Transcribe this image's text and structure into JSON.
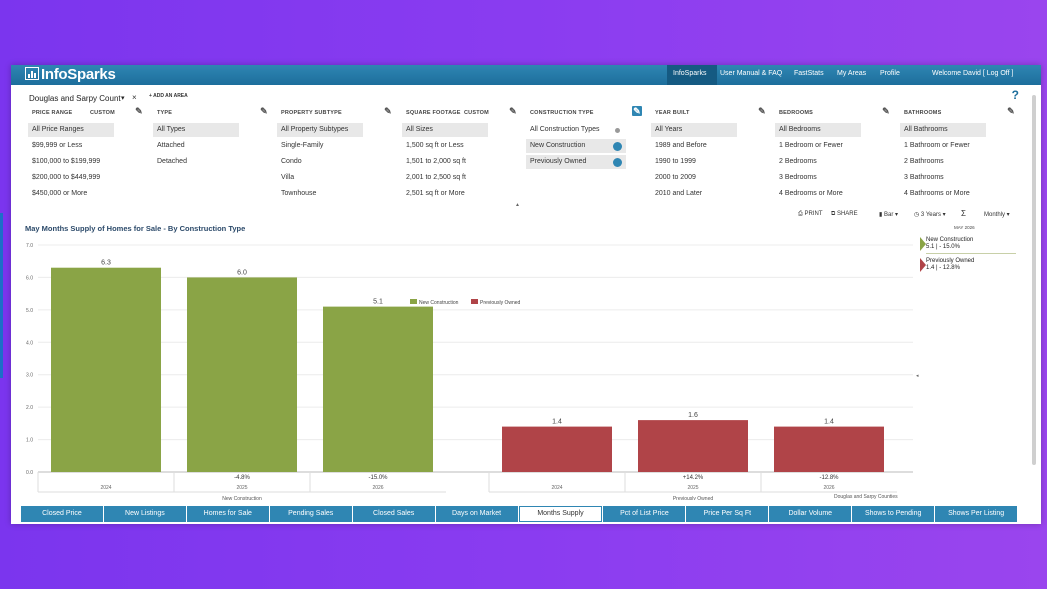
{
  "header": {
    "logo": "InfoSparks",
    "nav": [
      {
        "label": "InfoSparks",
        "active": true
      },
      {
        "label": "User Manual & FAQ"
      },
      {
        "label": "FastStats"
      },
      {
        "label": "My Areas"
      },
      {
        "label": "Profile"
      },
      {
        "label": "Welcome David [ Log Off ]"
      }
    ]
  },
  "area": {
    "name": "Douglas and Sarpy Count",
    "close": "×",
    "add_label": "+ ADD AN AREA",
    "help": "?"
  },
  "filters": [
    {
      "heading": "PRICE RANGE",
      "custom": "CUSTOM",
      "items": [
        "All Price Ranges",
        "$99,999 or Less",
        "$100,000 to $199,999",
        "$200,000 to $449,999",
        "$450,000 or More"
      ],
      "selected": [
        0
      ]
    },
    {
      "heading": "TYPE",
      "custom": "",
      "items": [
        "All Types",
        "Attached",
        "Detached"
      ],
      "selected": [
        0
      ]
    },
    {
      "heading": "PROPERTY SUBTYPE",
      "custom": "",
      "items": [
        "All Property Subtypes",
        "Single-Family",
        "Condo",
        "Villa",
        "Townhouse"
      ],
      "selected": [
        0
      ]
    },
    {
      "heading": "SQUARE FOOTAGE",
      "custom": "CUSTOM",
      "items": [
        "All Sizes",
        "1,500 sq ft or Less",
        "1,501 to 2,000 sq ft",
        "2,001 to 2,500 sq ft",
        "2,501 sq ft or More"
      ],
      "selected": [
        0
      ]
    },
    {
      "heading": "CONSTRUCTION TYPE",
      "custom": "",
      "items": [
        "All Construction Types",
        "New Construction",
        "Previously Owned"
      ],
      "selected": [
        1,
        2
      ],
      "active": true
    },
    {
      "heading": "YEAR BUILT",
      "custom": "",
      "items": [
        "All Years",
        "1989 and Before",
        "1990 to 1999",
        "2000 to 2009",
        "2010 and Later"
      ],
      "selected": [
        0
      ]
    },
    {
      "heading": "BEDROOMS",
      "custom": "",
      "items": [
        "All Bedrooms",
        "1 Bedroom or Fewer",
        "2 Bedrooms",
        "3 Bedrooms",
        "4 Bedrooms or More"
      ],
      "selected": [
        0
      ]
    },
    {
      "heading": "BATHROOMS",
      "custom": "",
      "items": [
        "All Bathrooms",
        "1 Bathroom or Fewer",
        "2 Bathrooms",
        "3 Bathrooms",
        "4 Bathrooms or More"
      ],
      "selected": [
        0
      ]
    }
  ],
  "toolbar": {
    "print": "PRINT",
    "share": "SHARE",
    "chart_type": "Bar",
    "range": "3 Years",
    "sigma": "Σ",
    "interval": "Monthly"
  },
  "colors": {
    "new_construction": "#8aa446",
    "previously_owned": "#b04448",
    "header": "#2f86b3",
    "accent": "#2f86b3"
  },
  "chart_data": {
    "type": "bar",
    "title": "May Months Supply of Homes for Sale - By Construction Type",
    "ylim": [
      0,
      7
    ],
    "yticks": [
      "0.0",
      "1.0",
      "2.0",
      "3.0",
      "4.0",
      "5.0",
      "6.0",
      "7.0"
    ],
    "legend": [
      {
        "name": "New Construction",
        "color": "#8aa446"
      },
      {
        "name": "Previously Owned",
        "color": "#b04448"
      }
    ],
    "groups": [
      {
        "name": "New Construction",
        "color": "#8aa446",
        "categories": [
          "2024",
          "2025",
          "2026"
        ],
        "values": [
          6.3,
          6.0,
          5.1
        ],
        "labels": [
          "6.3",
          "6.0",
          "5.1"
        ],
        "changes": [
          "",
          "-4.8%",
          "-15.0%"
        ]
      },
      {
        "name": "Previously Owned",
        "color": "#b04448",
        "categories": [
          "2024",
          "2025",
          "2026"
        ],
        "values": [
          1.4,
          1.6,
          1.4
        ],
        "labels": [
          "1.4",
          "1.6",
          "1.4"
        ],
        "changes": [
          "",
          "+14.2%",
          "-12.8%"
        ]
      }
    ]
  },
  "side_panel": {
    "date": "MAY 2026",
    "entries": [
      {
        "name": "New Construction",
        "value": "5.1 | - 15.0%",
        "color": "#8aa446"
      },
      {
        "name": "Previously Owned",
        "value": "1.4 | - 12.8%",
        "color": "#b04448"
      }
    ]
  },
  "source_note": "Douglas and Sarpy Counties",
  "tabs": [
    "Closed Price",
    "New Listings",
    "Homes for Sale",
    "Pending Sales",
    "Closed Sales",
    "Days on Market",
    "Months Supply",
    "Pct of List Price",
    "Price Per Sq Ft",
    "Dollar Volume",
    "Shows to Pending",
    "Shows Per Listing"
  ],
  "active_tab": 6
}
